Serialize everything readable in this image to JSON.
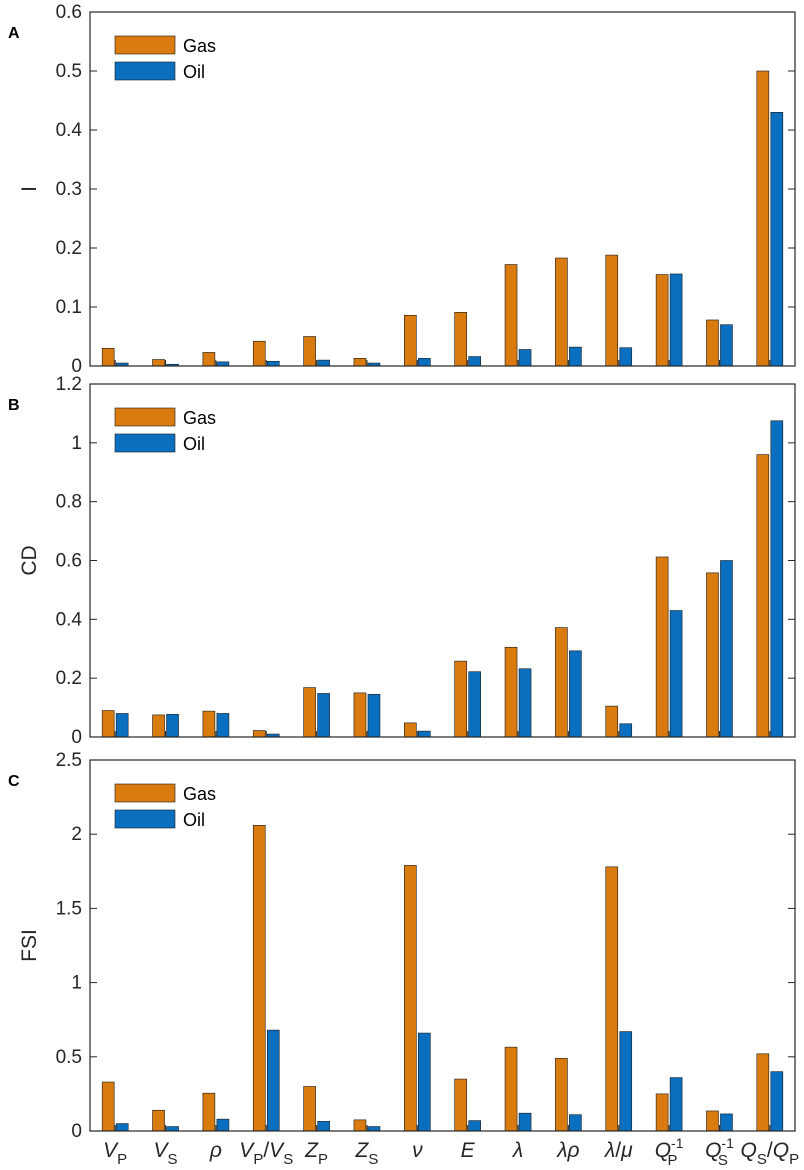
{
  "figure": {
    "categories": [
      "V_P",
      "V_S",
      "ρ",
      "V_P/V_S",
      "Z_P",
      "Z_S",
      "ν",
      "E",
      "λ",
      "λρ",
      "λ/μ",
      "Q_P^-1",
      "Q_S^-1",
      "Q_S/Q_P"
    ],
    "colors": {
      "gas": "#D97B0F",
      "oil": "#0B6FC0",
      "axis": "#262626",
      "text": "#262626"
    }
  },
  "chart_data": [
    {
      "type": "bar",
      "panel_label": "A",
      "title": "",
      "xlabel": "",
      "ylabel": "I",
      "ylim": [
        0,
        0.6
      ],
      "yticks": [
        0,
        0.1,
        0.2,
        0.3,
        0.4,
        0.5,
        0.6
      ],
      "ytick_labels": [
        "0",
        "0.1",
        "0.2",
        "0.3",
        "0.4",
        "0.5",
        "0.6"
      ],
      "legend": {
        "position": "top-left",
        "entries": [
          "Gas",
          "Oil"
        ]
      },
      "series": [
        {
          "name": "Gas",
          "values": [
            0.03,
            0.011,
            0.023,
            0.042,
            0.05,
            0.013,
            0.086,
            0.091,
            0.172,
            0.183,
            0.188,
            0.155,
            0.078,
            0.5
          ]
        },
        {
          "name": "Oil",
          "values": [
            0.005,
            0.003,
            0.007,
            0.008,
            0.01,
            0.005,
            0.013,
            0.016,
            0.028,
            0.032,
            0.031,
            0.156,
            0.07,
            0.43
          ]
        }
      ]
    },
    {
      "type": "bar",
      "panel_label": "B",
      "title": "",
      "xlabel": "",
      "ylabel": "CD",
      "ylim": [
        0,
        1.2
      ],
      "yticks": [
        0,
        0.2,
        0.4,
        0.6,
        0.8,
        1,
        1.2
      ],
      "ytick_labels": [
        "0",
        "0.2",
        "0.4",
        "0.6",
        "0.8",
        "1",
        "1.2"
      ],
      "legend": {
        "position": "top-left",
        "entries": [
          "Gas",
          "Oil"
        ]
      },
      "series": [
        {
          "name": "Gas",
          "values": [
            0.09,
            0.075,
            0.088,
            0.022,
            0.168,
            0.15,
            0.048,
            0.258,
            0.305,
            0.372,
            0.105,
            0.612,
            0.558,
            0.96
          ]
        },
        {
          "name": "Oil",
          "values": [
            0.08,
            0.077,
            0.08,
            0.01,
            0.148,
            0.145,
            0.02,
            0.222,
            0.232,
            0.293,
            0.045,
            0.43,
            0.6,
            1.075
          ]
        }
      ]
    },
    {
      "type": "bar",
      "panel_label": "C",
      "title": "",
      "xlabel": "",
      "ylabel": "FSI",
      "ylim": [
        0,
        2.5
      ],
      "yticks": [
        0,
        0.5,
        1,
        1.5,
        2,
        2.5
      ],
      "ytick_labels": [
        "0",
        "0.5",
        "1",
        "1.5",
        "2",
        "2.5"
      ],
      "legend": {
        "position": "top-left",
        "entries": [
          "Gas",
          "Oil"
        ]
      },
      "series": [
        {
          "name": "Gas",
          "values": [
            0.33,
            0.14,
            0.255,
            2.06,
            0.3,
            0.075,
            1.79,
            0.35,
            0.565,
            0.49,
            1.78,
            0.25,
            0.135,
            0.52
          ]
        },
        {
          "name": "Oil",
          "values": [
            0.05,
            0.03,
            0.08,
            0.68,
            0.065,
            0.03,
            0.66,
            0.07,
            0.12,
            0.11,
            0.67,
            0.36,
            0.115,
            0.4
          ]
        }
      ]
    }
  ]
}
